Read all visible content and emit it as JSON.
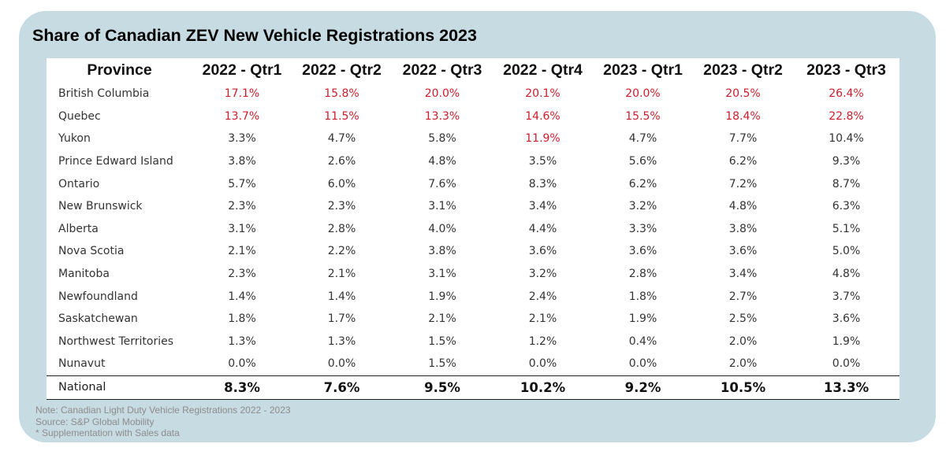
{
  "chart_data": {
    "type": "table",
    "title": "Share of Canadian ZEV New Vehicle Registrations 2023",
    "columns": [
      "Province",
      "2022 - Qtr1",
      "2022 - Qtr2",
      "2022 - Qtr3",
      "2022 - Qtr4",
      "2023 - Qtr1",
      "2023 - Qtr2",
      "2023 - Qtr3"
    ],
    "rows": [
      {
        "province": "British Columbia",
        "values": [
          "17.1%",
          "15.8%",
          "20.0%",
          "20.1%",
          "20.0%",
          "20.5%",
          "26.4%"
        ],
        "highlight": [
          true,
          true,
          true,
          true,
          true,
          true,
          true
        ]
      },
      {
        "province": "Quebec",
        "values": [
          "13.7%",
          "11.5%",
          "13.3%",
          "14.6%",
          "15.5%",
          "18.4%",
          "22.8%"
        ],
        "highlight": [
          true,
          true,
          true,
          true,
          true,
          true,
          true
        ]
      },
      {
        "province": "Yukon",
        "values": [
          "3.3%",
          "4.7%",
          "5.8%",
          "11.9%",
          "4.7%",
          "7.7%",
          "10.4%"
        ],
        "highlight": [
          false,
          false,
          false,
          true,
          false,
          false,
          false
        ]
      },
      {
        "province": "Prince Edward Island",
        "values": [
          "3.8%",
          "2.6%",
          "4.8%",
          "3.5%",
          "5.6%",
          "6.2%",
          "9.3%"
        ],
        "highlight": [
          false,
          false,
          false,
          false,
          false,
          false,
          false
        ]
      },
      {
        "province": "Ontario",
        "values": [
          "5.7%",
          "6.0%",
          "7.6%",
          "8.3%",
          "6.2%",
          "7.2%",
          "8.7%"
        ],
        "highlight": [
          false,
          false,
          false,
          false,
          false,
          false,
          false
        ]
      },
      {
        "province": "New Brunswick",
        "values": [
          "2.3%",
          "2.3%",
          "3.1%",
          "3.4%",
          "3.2%",
          "4.8%",
          "6.3%"
        ],
        "highlight": [
          false,
          false,
          false,
          false,
          false,
          false,
          false
        ]
      },
      {
        "province": "Alberta",
        "values": [
          "3.1%",
          "2.8%",
          "4.0%",
          "4.4%",
          "3.3%",
          "3.8%",
          "5.1%"
        ],
        "highlight": [
          false,
          false,
          false,
          false,
          false,
          false,
          false
        ]
      },
      {
        "province": "Nova Scotia",
        "values": [
          "2.1%",
          "2.2%",
          "3.8%",
          "3.6%",
          "3.6%",
          "3.6%",
          "5.0%"
        ],
        "highlight": [
          false,
          false,
          false,
          false,
          false,
          false,
          false
        ]
      },
      {
        "province": "Manitoba",
        "values": [
          "2.3%",
          "2.1%",
          "3.1%",
          "3.2%",
          "2.8%",
          "3.4%",
          "4.8%"
        ],
        "highlight": [
          false,
          false,
          false,
          false,
          false,
          false,
          false
        ]
      },
      {
        "province": "Newfoundland",
        "values": [
          "1.4%",
          "1.4%",
          "1.9%",
          "2.4%",
          "1.8%",
          "2.7%",
          "3.7%"
        ],
        "highlight": [
          false,
          false,
          false,
          false,
          false,
          false,
          false
        ]
      },
      {
        "province": "Saskatchewan",
        "values": [
          "1.8%",
          "1.7%",
          "2.1%",
          "2.1%",
          "1.9%",
          "2.5%",
          "3.6%"
        ],
        "highlight": [
          false,
          false,
          false,
          false,
          false,
          false,
          false
        ]
      },
      {
        "province": "Northwest Territories",
        "values": [
          "1.3%",
          "1.3%",
          "1.5%",
          "1.2%",
          "0.4%",
          "2.0%",
          "1.9%"
        ],
        "highlight": [
          false,
          false,
          false,
          false,
          false,
          false,
          false
        ]
      },
      {
        "province": "Nunavut",
        "values": [
          "0.0%",
          "0.0%",
          "1.5%",
          "0.0%",
          "0.0%",
          "2.0%",
          "0.0%"
        ],
        "highlight": [
          false,
          false,
          false,
          false,
          false,
          false,
          false
        ]
      }
    ],
    "total_row": {
      "province": "National",
      "values": [
        "8.3%",
        "7.6%",
        "9.5%",
        "10.2%",
        "9.2%",
        "10.5%",
        "13.3%"
      ]
    },
    "notes": [
      "Note: Canadian Light Duty Vehicle Registrations 2022 - 2023",
      "Source: S&P Global Mobility",
      "* Supplementation with Sales data"
    ]
  },
  "colors": {
    "panel_background": "#c7dbe3",
    "highlight_text": "#cc1d2a",
    "body_text": "#333333",
    "note_text": "#8c8c8c"
  }
}
